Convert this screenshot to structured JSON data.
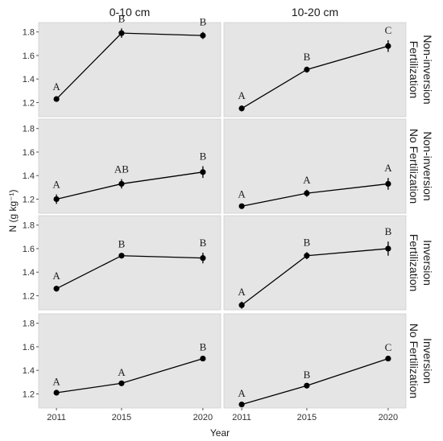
{
  "chart_data": {
    "type": "line",
    "xlabel": "Year",
    "ylabel": "N (g kg⁻¹)",
    "x_ticks": [
      2011,
      2015,
      2020
    ],
    "y_ticks": [
      "1.2",
      "1.4",
      "1.6",
      "1.8"
    ],
    "ylim": [
      1.08,
      1.88
    ],
    "xlim": [
      2010.5,
      2020.5
    ],
    "grid": false,
    "panel_background": "#e5e5e5",
    "marker_color": "#000000",
    "columns": [
      "0-10 cm",
      "10-20 cm"
    ],
    "rows": [
      [
        "Non-inversion",
        "Fertilization"
      ],
      [
        "Non-inversion",
        "No Fertilization"
      ],
      [
        "Inversion",
        "Fertilization"
      ],
      [
        "Inversion",
        "No Fertilization"
      ]
    ],
    "panels": [
      {
        "row": 0,
        "col": 0,
        "points": [
          {
            "x": 2011,
            "y": 1.23,
            "err": 0.02,
            "letter": "A"
          },
          {
            "x": 2015,
            "y": 1.79,
            "err": 0.04,
            "letter": "B"
          },
          {
            "x": 2020,
            "y": 1.77,
            "err": 0.03,
            "letter": "B"
          }
        ]
      },
      {
        "row": 0,
        "col": 1,
        "points": [
          {
            "x": 2011,
            "y": 1.15,
            "err": 0.025,
            "letter": "A"
          },
          {
            "x": 2015,
            "y": 1.48,
            "err": 0.025,
            "letter": "B"
          },
          {
            "x": 2020,
            "y": 1.68,
            "err": 0.05,
            "letter": "C"
          }
        ]
      },
      {
        "row": 1,
        "col": 0,
        "points": [
          {
            "x": 2011,
            "y": 1.2,
            "err": 0.04,
            "letter": "A"
          },
          {
            "x": 2015,
            "y": 1.33,
            "err": 0.04,
            "letter": "AB"
          },
          {
            "x": 2020,
            "y": 1.43,
            "err": 0.05,
            "letter": "B"
          }
        ]
      },
      {
        "row": 1,
        "col": 1,
        "points": [
          {
            "x": 2011,
            "y": 1.14,
            "err": 0.02,
            "letter": "A"
          },
          {
            "x": 2015,
            "y": 1.25,
            "err": 0.03,
            "letter": "A"
          },
          {
            "x": 2020,
            "y": 1.33,
            "err": 0.05,
            "letter": "A"
          }
        ]
      },
      {
        "row": 2,
        "col": 0,
        "points": [
          {
            "x": 2011,
            "y": 1.26,
            "err": 0.025,
            "letter": "A"
          },
          {
            "x": 2015,
            "y": 1.54,
            "err": 0.015,
            "letter": "B"
          },
          {
            "x": 2020,
            "y": 1.52,
            "err": 0.045,
            "letter": "B"
          }
        ]
      },
      {
        "row": 2,
        "col": 1,
        "points": [
          {
            "x": 2011,
            "y": 1.12,
            "err": 0.03,
            "letter": "A"
          },
          {
            "x": 2015,
            "y": 1.54,
            "err": 0.03,
            "letter": "B"
          },
          {
            "x": 2020,
            "y": 1.6,
            "err": 0.06,
            "letter": "B"
          }
        ]
      },
      {
        "row": 3,
        "col": 0,
        "points": [
          {
            "x": 2011,
            "y": 1.21,
            "err": 0.01,
            "letter": "A"
          },
          {
            "x": 2015,
            "y": 1.29,
            "err": 0.01,
            "letter": "A"
          },
          {
            "x": 2020,
            "y": 1.5,
            "err": 0.015,
            "letter": "B"
          }
        ]
      },
      {
        "row": 3,
        "col": 1,
        "points": [
          {
            "x": 2011,
            "y": 1.11,
            "err": 0.01,
            "letter": "A"
          },
          {
            "x": 2015,
            "y": 1.27,
            "err": 0.01,
            "letter": "B"
          },
          {
            "x": 2020,
            "y": 1.5,
            "err": 0.01,
            "letter": "C"
          }
        ]
      }
    ]
  }
}
